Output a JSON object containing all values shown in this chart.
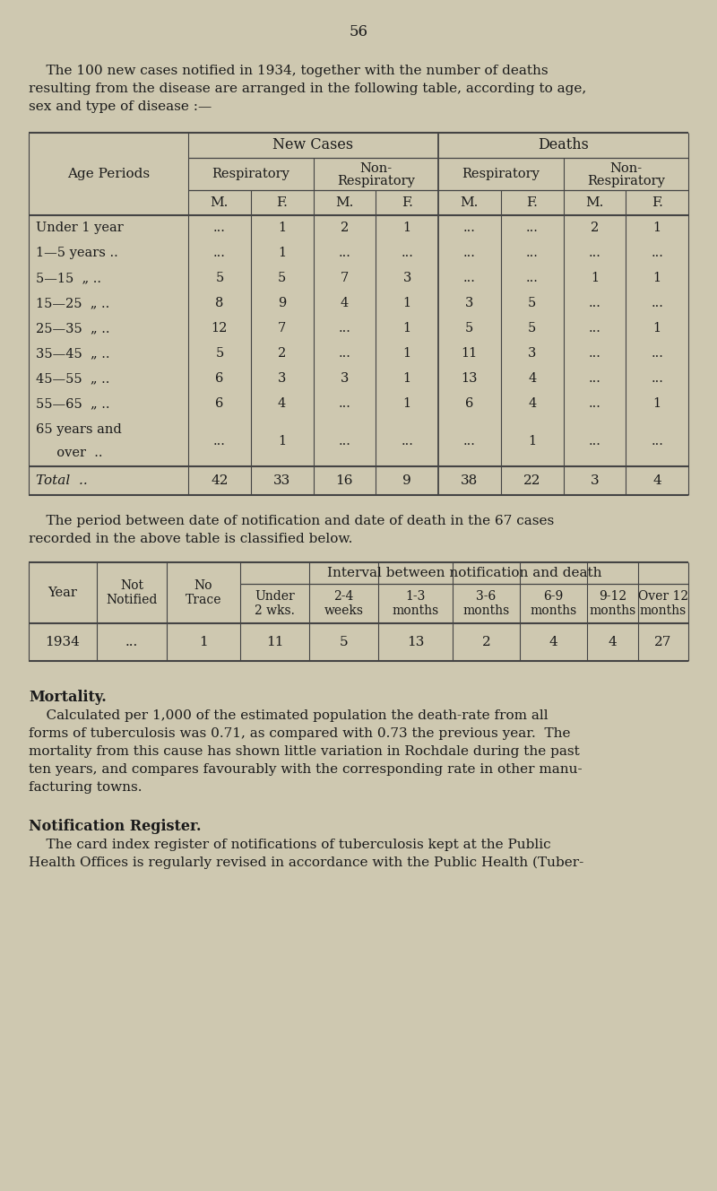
{
  "bg_color": "#cec8b0",
  "text_color": "#1a1a1a",
  "page_number": "56",
  "intro_text_line1": "    The 100 new cases notified in 1934, together with the number of deaths",
  "intro_text_line2": "resulting from the disease are arranged in the following table, according to age,",
  "intro_text_line3": "sex and type of disease :—",
  "table1": {
    "col_groups": [
      "New Cases",
      "Deaths"
    ],
    "sub_groups": [
      "Respiratory",
      "Non-\nRespiratory",
      "Respiratory",
      "Non-\nRespiratory"
    ],
    "sex_headers": [
      "M.",
      "F.",
      "M.",
      "F.",
      "M.",
      "F.",
      "M.",
      "F."
    ],
    "age_rows": [
      {
        "label1": "Under 1 year",
        "label2": "",
        "values": [
          "...",
          "1",
          "2",
          "1",
          "...",
          "...",
          "2",
          "1"
        ]
      },
      {
        "label1": "1—5 years ..",
        "label2": "",
        "values": [
          "...",
          "1",
          "...",
          "...",
          "...",
          "...",
          "...",
          "..."
        ]
      },
      {
        "label1": "5—15  „ ..",
        "label2": "",
        "values": [
          "5",
          "5",
          "7",
          "3",
          "...",
          "...",
          "1",
          "1"
        ]
      },
      {
        "label1": "15—25  „ ..",
        "label2": "",
        "values": [
          "8",
          "9",
          "4",
          "1",
          "3",
          "5",
          "...",
          "..."
        ]
      },
      {
        "label1": "25—35  „ ..",
        "label2": "",
        "values": [
          "12",
          "7",
          "...",
          "1",
          "5",
          "5",
          "...",
          "1"
        ]
      },
      {
        "label1": "35—45  „ ..",
        "label2": "",
        "values": [
          "5",
          "2",
          "...",
          "1",
          "11",
          "3",
          "...",
          "..."
        ]
      },
      {
        "label1": "45—55  „ ..",
        "label2": "",
        "values": [
          "6",
          "3",
          "3",
          "1",
          "13",
          "4",
          "...",
          "..."
        ]
      },
      {
        "label1": "55—65  „ ..",
        "label2": "",
        "values": [
          "6",
          "4",
          "...",
          "1",
          "6",
          "4",
          "...",
          "1"
        ]
      },
      {
        "label1": "65 years and",
        "label2": "  over  ..",
        "values": [
          "...",
          "1",
          "...",
          "...",
          "...",
          "1",
          "...",
          "..."
        ]
      }
    ],
    "total_row": {
      "label": "Total  ..",
      "values": [
        "42",
        "33",
        "16",
        "9",
        "38",
        "22",
        "3",
        "4"
      ]
    }
  },
  "between_text_line1": "    The period between date of notification and date of death in the 67 cases",
  "between_text_line2": "recorded in the above table is classified below.",
  "table2": {
    "span_header": "Interval between notification and death",
    "col_headers": [
      "Year",
      "Not\nNotified",
      "No\nTrace",
      "Under\n2 wks.",
      "2-4\nweeks",
      "1-3\nmonths",
      "3-6\nmonths",
      "6-9\nmonths",
      "9-12\nmonths",
      "Over 12\nmonths"
    ],
    "data_row": [
      "1934",
      "...",
      "1",
      "11",
      "5",
      "13",
      "2",
      "4",
      "4",
      "27"
    ]
  },
  "mortality_heading": "Mortality.",
  "mortality_body": "    Calculated per 1,000 of the estimated population the death-rate from all\nforms of tuberculosis was 0.71, as compared with 0.73 the previous year.  The\nmortality from this cause has shown little variation in Rochdale during the past\nten years, and compares favourably with the corresponding rate in other manu-\nfacturing towns.",
  "notification_heading": "Notification Register.",
  "notification_body": "    The card index register of notifications of tuberculosis kept at the Public\nHealth Offices is regularly revised in accordance with the Public Health (Tuber-"
}
